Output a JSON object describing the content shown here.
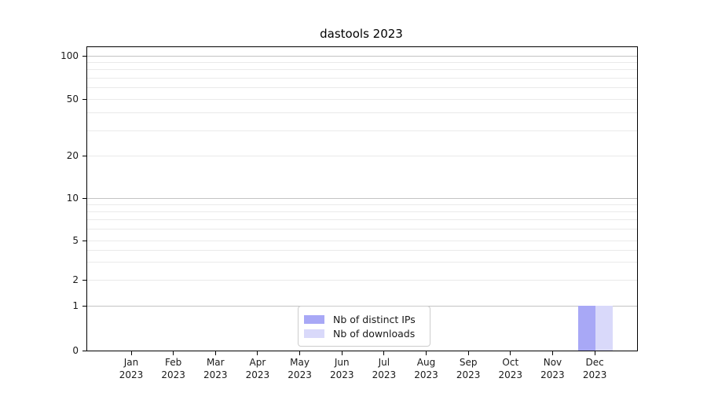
{
  "title": "dastools 2023",
  "chart_data": {
    "type": "bar",
    "title": "dastools 2023",
    "categories": [
      {
        "month": "Jan",
        "year": "2023"
      },
      {
        "month": "Feb",
        "year": "2023"
      },
      {
        "month": "Mar",
        "year": "2023"
      },
      {
        "month": "Apr",
        "year": "2023"
      },
      {
        "month": "May",
        "year": "2023"
      },
      {
        "month": "Jun",
        "year": "2023"
      },
      {
        "month": "Jul",
        "year": "2023"
      },
      {
        "month": "Aug",
        "year": "2023"
      },
      {
        "month": "Sep",
        "year": "2023"
      },
      {
        "month": "Oct",
        "year": "2023"
      },
      {
        "month": "Nov",
        "year": "2023"
      },
      {
        "month": "Dec",
        "year": "2023"
      }
    ],
    "series": [
      {
        "name": "Nb of distinct IPs",
        "color": "#a8a8f6",
        "values": [
          0,
          0,
          0,
          0,
          0,
          0,
          0,
          0,
          0,
          0,
          0,
          1
        ]
      },
      {
        "name": "Nb of downloads",
        "color": "#d9d9fa",
        "values": [
          0,
          0,
          0,
          0,
          0,
          0,
          0,
          0,
          0,
          0,
          0,
          1
        ]
      }
    ],
    "xlabel": "",
    "ylabel": "",
    "yscale": "log-like with linear segment to 0",
    "yticks": [
      0,
      1,
      2,
      5,
      10,
      20,
      50,
      100
    ],
    "ylim": [
      0,
      115
    ],
    "grid": "horizontal",
    "legend_position": "lower center",
    "colors": {
      "grid_major": "#c3c3c3",
      "grid_minor": "#eaeaea",
      "spine": "#000000",
      "legend_border": "#cccccc"
    }
  }
}
